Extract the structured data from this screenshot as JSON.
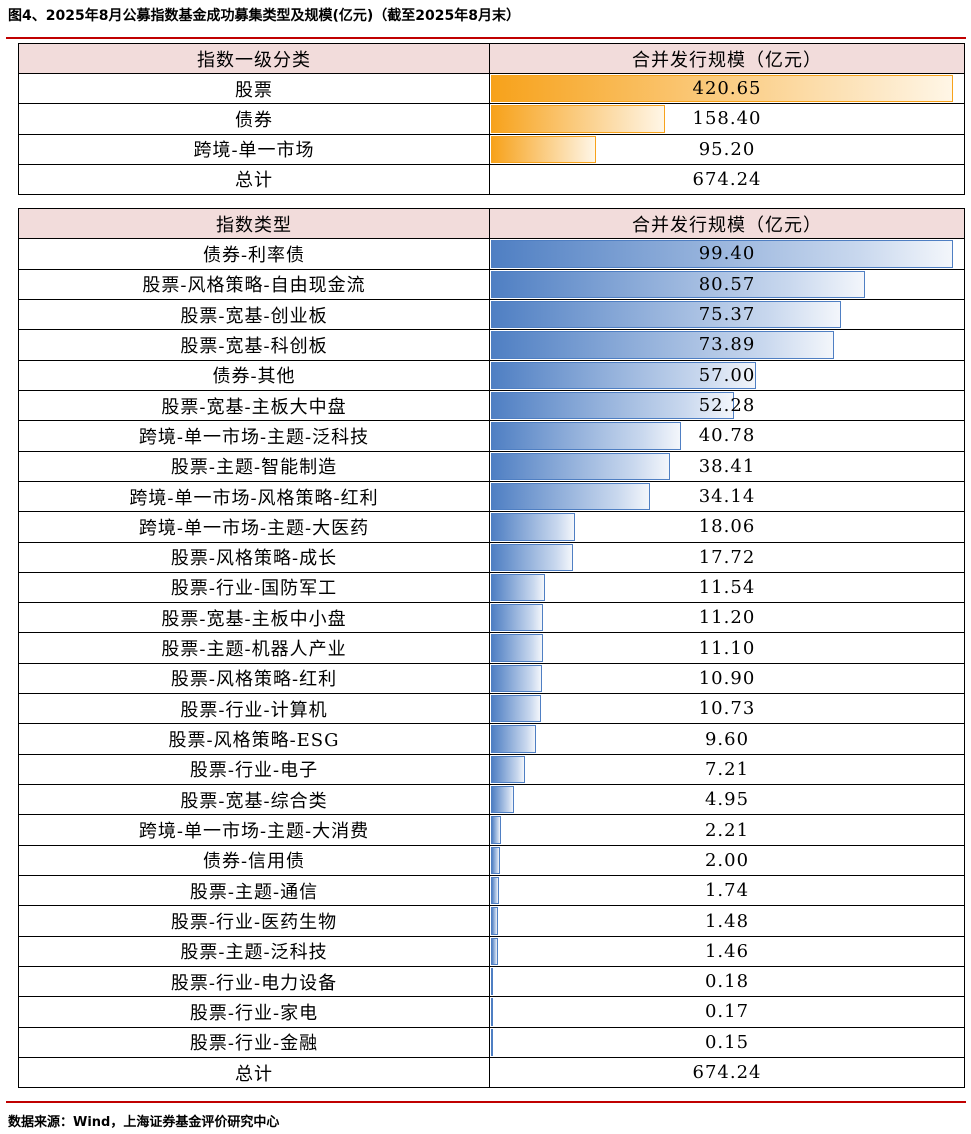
{
  "title": "图4、2025年8月公募指数基金成功募集类型及规模(亿元)（截至2025年8月末）",
  "table1": {
    "header": [
      "指数一级分类",
      "合并发行规模（亿元）"
    ],
    "rows": [
      [
        "股票",
        "420.65"
      ],
      [
        "债券",
        "158.40"
      ],
      [
        "跨境-单一市场",
        "95.20"
      ]
    ],
    "total": [
      "总计",
      "674.24"
    ]
  },
  "table2": {
    "header": [
      "指数类型",
      "合并发行规模（亿元）"
    ],
    "rows": [
      [
        "债券-利率债",
        "99.40"
      ],
      [
        "股票-风格策略-自由现金流",
        "80.57"
      ],
      [
        "股票-宽基-创业板",
        "75.37"
      ],
      [
        "股票-宽基-科创板",
        "73.89"
      ],
      [
        "债券-其他",
        "57.00"
      ],
      [
        "股票-宽基-主板大中盘",
        "52.28"
      ],
      [
        "跨境-单一市场-主题-泛科技",
        "40.78"
      ],
      [
        "股票-主题-智能制造",
        "38.41"
      ],
      [
        "跨境-单一市场-风格策略-红利",
        "34.14"
      ],
      [
        "跨境-单一市场-主题-大医药",
        "18.06"
      ],
      [
        "股票-风格策略-成长",
        "17.72"
      ],
      [
        "股票-行业-国防军工",
        "11.54"
      ],
      [
        "股票-宽基-主板中小盘",
        "11.20"
      ],
      [
        "股票-主题-机器人产业",
        "11.10"
      ],
      [
        "股票-风格策略-红利",
        "10.90"
      ],
      [
        "股票-行业-计算机",
        "10.73"
      ],
      [
        "股票-风格策略-ESG",
        "9.60"
      ],
      [
        "股票-行业-电子",
        "7.21"
      ],
      [
        "股票-宽基-综合类",
        "4.95"
      ],
      [
        "跨境-单一市场-主题-大消费",
        "2.21"
      ],
      [
        "债券-信用债",
        "2.00"
      ],
      [
        "股票-主题-通信",
        "1.74"
      ],
      [
        "股票-行业-医药生物",
        "1.48"
      ],
      [
        "股票-主题-泛科技",
        "1.46"
      ],
      [
        "股票-行业-电力设备",
        "0.18"
      ],
      [
        "股票-行业-家电",
        "0.17"
      ],
      [
        "股票-行业-金融",
        "0.15"
      ]
    ],
    "total": [
      "总计",
      "674.24"
    ]
  },
  "source": "数据来源：Wind，上海证券基金评价研究中心"
}
